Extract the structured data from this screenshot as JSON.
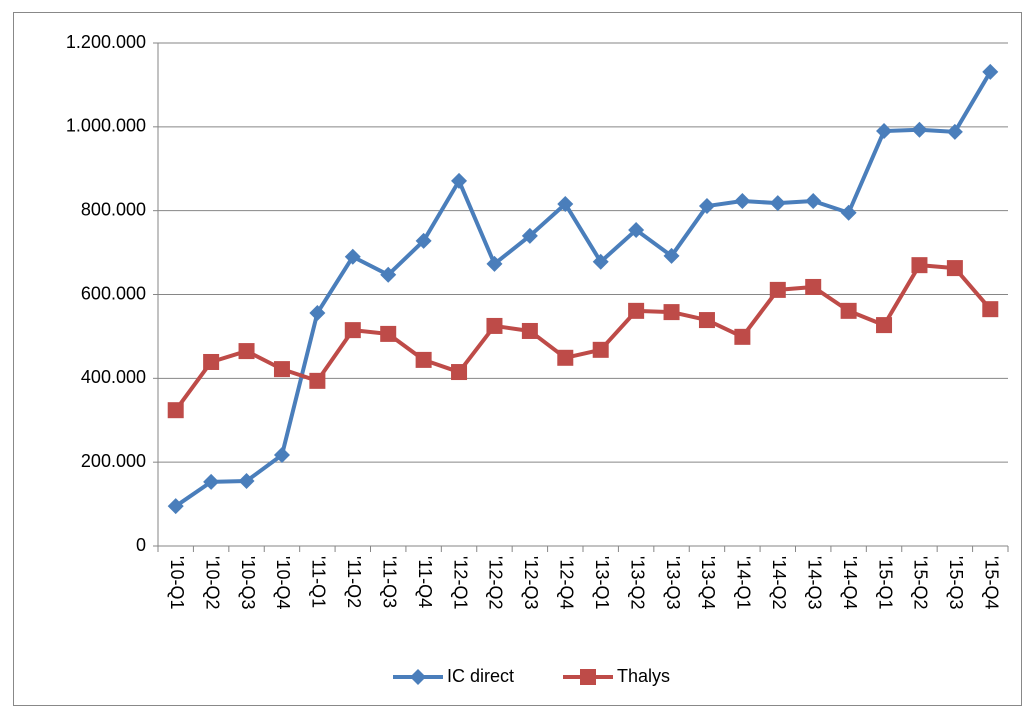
{
  "chart_data": {
    "type": "line",
    "categories": [
      "'10-Q1",
      "'10-Q2",
      "'10-Q3",
      "'10-Q4",
      "'11-Q1",
      "'11-Q2",
      "'11-Q3",
      "'11-Q4",
      "'12-Q1",
      "'12-Q2",
      "'12-Q3",
      "'12-Q4",
      "'13-Q1",
      "'13-Q2",
      "'13-Q3",
      "'13-Q4",
      "'14-Q1",
      "'14-Q2",
      "'14-Q3",
      "'14-Q4",
      "'15-Q1",
      "'15-Q2",
      "'15-Q3",
      "'15-Q4"
    ],
    "series": [
      {
        "name": "IC direct",
        "color": "#4a7ebb",
        "marker": "diamond",
        "values": [
          95000,
          153000,
          155000,
          217000,
          556000,
          690000,
          647000,
          728000,
          871000,
          673000,
          740000,
          816000,
          678000,
          754000,
          692000,
          811000,
          823000,
          818000,
          823000,
          795000,
          990000,
          993000,
          988000,
          1131000
        ]
      },
      {
        "name": "Thalys",
        "color": "#be4b48",
        "marker": "square",
        "values": [
          324000,
          439000,
          465000,
          422000,
          394000,
          515000,
          506000,
          444000,
          415000,
          525000,
          513000,
          449000,
          468000,
          561000,
          558000,
          539000,
          499000,
          611000,
          618000,
          561000,
          527000,
          670000,
          663000,
          565000
        ]
      }
    ],
    "ylim": [
      0,
      1200000
    ],
    "yticks": [
      0,
      {
        "value": 200000,
        "label": "200.000"
      },
      {
        "value": 400000,
        "label": "400.000"
      },
      {
        "value": 600000,
        "label": "600.000"
      },
      {
        "value": 800000,
        "label": "800.000"
      },
      {
        "value": 1000000,
        "label": "1.000.000"
      },
      {
        "value": 1200000,
        "label": "1.200.000"
      }
    ],
    "grid": true,
    "legend": "bottom"
  }
}
